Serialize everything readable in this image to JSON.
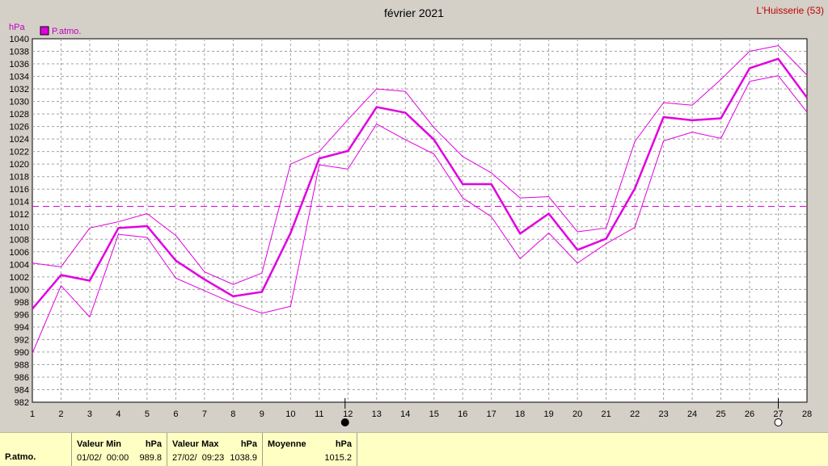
{
  "header": {
    "title": "février 2021",
    "station": "L'Huisserie (53)"
  },
  "chart_data": {
    "type": "line",
    "ylabel": "hPa",
    "ylim": [
      982,
      1040
    ],
    "ytick_step": 2,
    "x": [
      1,
      2,
      3,
      4,
      5,
      6,
      7,
      8,
      9,
      10,
      11,
      12,
      13,
      14,
      15,
      16,
      17,
      18,
      19,
      20,
      21,
      22,
      23,
      24,
      25,
      26,
      27,
      28
    ],
    "xlim": [
      1,
      28
    ],
    "grid": true,
    "legend_position": "top-left",
    "series": [
      {
        "name": "P.atmo.",
        "role": "mean",
        "color": "#e000e0",
        "values": [
          996.9,
          1002.3,
          1001.4,
          1009.8,
          1010.1,
          1004.6,
          1001.6,
          998.9,
          999.6,
          1009.0,
          1020.9,
          1022.1,
          1029.1,
          1028.2,
          1023.9,
          1016.8,
          1016.8,
          1008.9,
          1012.1,
          1006.3,
          1008.1,
          1016.1,
          1027.5,
          1027.0,
          1027.3,
          1035.3,
          1036.8,
          1030.6
        ]
      },
      {
        "name": "",
        "role": "max",
        "color": "#e000e0",
        "values": [
          1004.2,
          1003.6,
          1009.8,
          1010.8,
          1012.1,
          1008.6,
          1002.8,
          1000.8,
          1002.6,
          1020.0,
          1022.0,
          1027.1,
          1032.0,
          1031.6,
          1025.8,
          1021.2,
          1018.6,
          1014.6,
          1014.8,
          1009.2,
          1009.8,
          1023.6,
          1029.8,
          1029.4,
          1033.5,
          1038.0,
          1038.9,
          1034.2
        ]
      },
      {
        "name": "",
        "role": "min",
        "color": "#e000e0",
        "values": [
          989.8,
          1000.6,
          995.6,
          1008.8,
          1008.3,
          1001.8,
          999.8,
          997.8,
          996.2,
          997.3,
          1019.9,
          1019.2,
          1026.4,
          1023.9,
          1021.6,
          1014.6,
          1011.6,
          1004.9,
          1009.0,
          1004.2,
          1007.3,
          1009.9,
          1023.7,
          1025.1,
          1024.1,
          1033.2,
          1034.1,
          1028.3
        ]
      }
    ],
    "reference_line": {
      "value": 1013.25,
      "color": "#e000e0",
      "style": "dashed"
    },
    "moon_phases": [
      {
        "x": 11.9,
        "phase": "new"
      },
      {
        "x": 27.0,
        "phase": "full"
      }
    ]
  },
  "stats": {
    "label": "P.atmo.",
    "min": {
      "header": "Valeur Min",
      "unit": "hPa",
      "datetime": "01/02/  00:00",
      "value": "989.8"
    },
    "max": {
      "header": "Valeur Max",
      "unit": "hPa",
      "datetime": "27/02/  09:23",
      "value": "1038.9"
    },
    "mean": {
      "header": "Moyenne",
      "unit": "hPa",
      "value": "1015.2"
    }
  }
}
